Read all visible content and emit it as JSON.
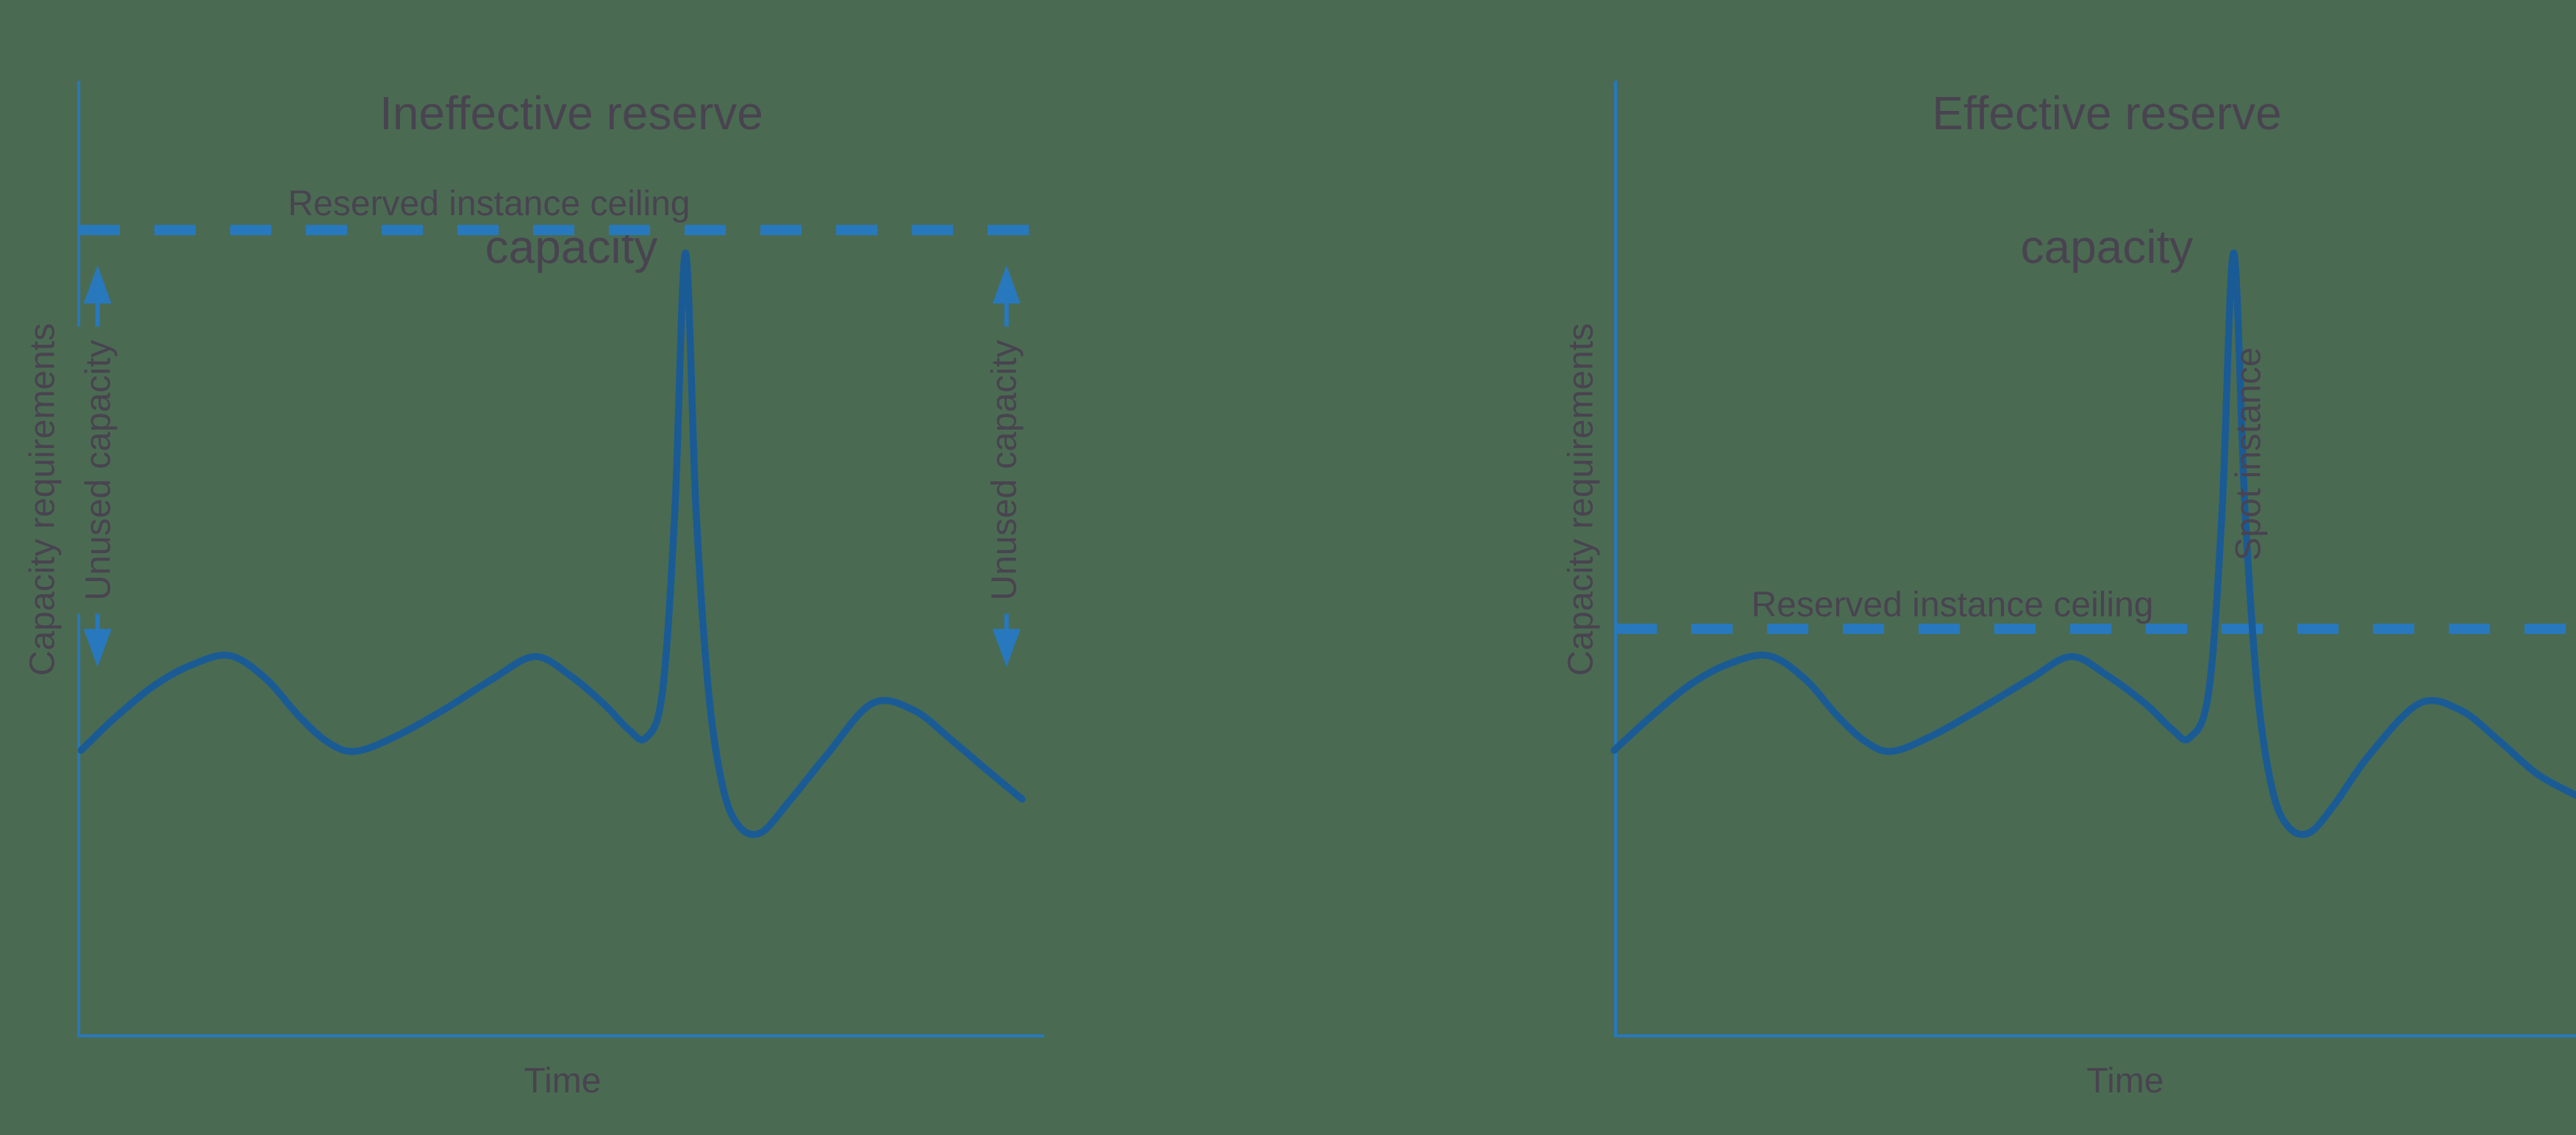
{
  "page": {
    "background": "#4a6b52",
    "text_color": "#494350",
    "accent_blue": "#2878bd",
    "curve_blue": "#1a5b95"
  },
  "chart_data": [
    {
      "type": "line",
      "title": "Ineffective reserve capacity",
      "title_lines": [
        "Ineffective reserve",
        "capacity"
      ],
      "xlabel": "Time",
      "ylabel": "Capacity requirements",
      "axes": {
        "x_ticks": [],
        "y_ticks": [],
        "grid": false,
        "units": "normalized 0-100 (no numeric scale shown)"
      },
      "ceiling": {
        "label": "Reserved instance ceiling",
        "level": 84.4,
        "style": "dashed"
      },
      "series": [
        {
          "name": "capacity-demand-curve",
          "points": [
            [
              0.4,
              30.0
            ],
            [
              4,
              33.5
            ],
            [
              8,
              36.8
            ],
            [
              12,
              39.0
            ],
            [
              15.8,
              39.9
            ],
            [
              19.5,
              37.5
            ],
            [
              23,
              33.5
            ],
            [
              26,
              30.8
            ],
            [
              28.8,
              29.9
            ],
            [
              33,
              31.5
            ],
            [
              38,
              34.3
            ],
            [
              43,
              37.5
            ],
            [
              47.3,
              39.8
            ],
            [
              51,
              37.8
            ],
            [
              54.5,
              34.8
            ],
            [
              57,
              32.2
            ],
            [
              58.8,
              31.3
            ],
            [
              60.5,
              36
            ],
            [
              61.8,
              55
            ],
            [
              62.9,
              82
            ],
            [
              64.0,
              55
            ],
            [
              65.3,
              36
            ],
            [
              66.8,
              26
            ],
            [
              68.5,
              22.0
            ],
            [
              70.7,
              21.4
            ],
            [
              73.5,
              24.5
            ],
            [
              77.5,
              29.5
            ],
            [
              82.2,
              34.9
            ],
            [
              86.5,
              34.2
            ],
            [
              90.5,
              31.0
            ],
            [
              94,
              28.0
            ],
            [
              97.7,
              24.9
            ]
          ]
        }
      ],
      "annotations": [
        {
          "type": "double_arrow",
          "label": "Unused capacity",
          "x": 2.1,
          "y_top": 80.7,
          "y_bottom": 38.7
        },
        {
          "type": "double_arrow",
          "label": "Unused capacity",
          "x": 96.1,
          "y_top": 80.7,
          "y_bottom": 38.7
        }
      ]
    },
    {
      "type": "line",
      "title": "Effective reserve capacity",
      "title_lines": [
        "Effective reserve",
        "capacity"
      ],
      "xlabel": "Time",
      "ylabel": "Capacity requirements",
      "axes": {
        "x_ticks": [],
        "y_ticks": [],
        "grid": false,
        "units": "normalized 0-100 (no numeric scale shown)"
      },
      "ceiling": {
        "label": "Reserved instance ceiling",
        "level": 42.7,
        "style": "dashed"
      },
      "series": [
        {
          "name": "capacity-demand-curve",
          "points": [
            [
              0,
              30.0
            ],
            [
              3.8,
              33.5
            ],
            [
              7.8,
              36.8
            ],
            [
              11.8,
              39.0
            ],
            [
              16.0,
              39.9
            ],
            [
              19.8,
              37.5
            ],
            [
              23.3,
              33.5
            ],
            [
              26.3,
              30.8
            ],
            [
              28.9,
              29.9
            ],
            [
              33,
              31.5
            ],
            [
              38,
              34.3
            ],
            [
              43.3,
              37.5
            ],
            [
              47.5,
              39.8
            ],
            [
              51.3,
              37.8
            ],
            [
              55.3,
              34.8
            ],
            [
              58,
              32.2
            ],
            [
              59.8,
              31.3
            ],
            [
              61.8,
              36
            ],
            [
              63.2,
              55
            ],
            [
              64.4,
              82
            ],
            [
              65.6,
              55
            ],
            [
              66.9,
              36
            ],
            [
              68.4,
              26
            ],
            [
              70.1,
              22.0
            ],
            [
              72.3,
              21.4
            ],
            [
              75,
              24.5
            ],
            [
              78.5,
              29.5
            ],
            [
              83.7,
              34.9
            ],
            [
              88,
              34.2
            ],
            [
              92,
              31.0
            ],
            [
              96,
              27.5
            ],
            [
              100,
              25.3
            ]
          ]
        }
      ],
      "annotations": [
        {
          "type": "text",
          "label": "Spot instance",
          "x": 65.8,
          "y": 61.0
        }
      ]
    }
  ]
}
